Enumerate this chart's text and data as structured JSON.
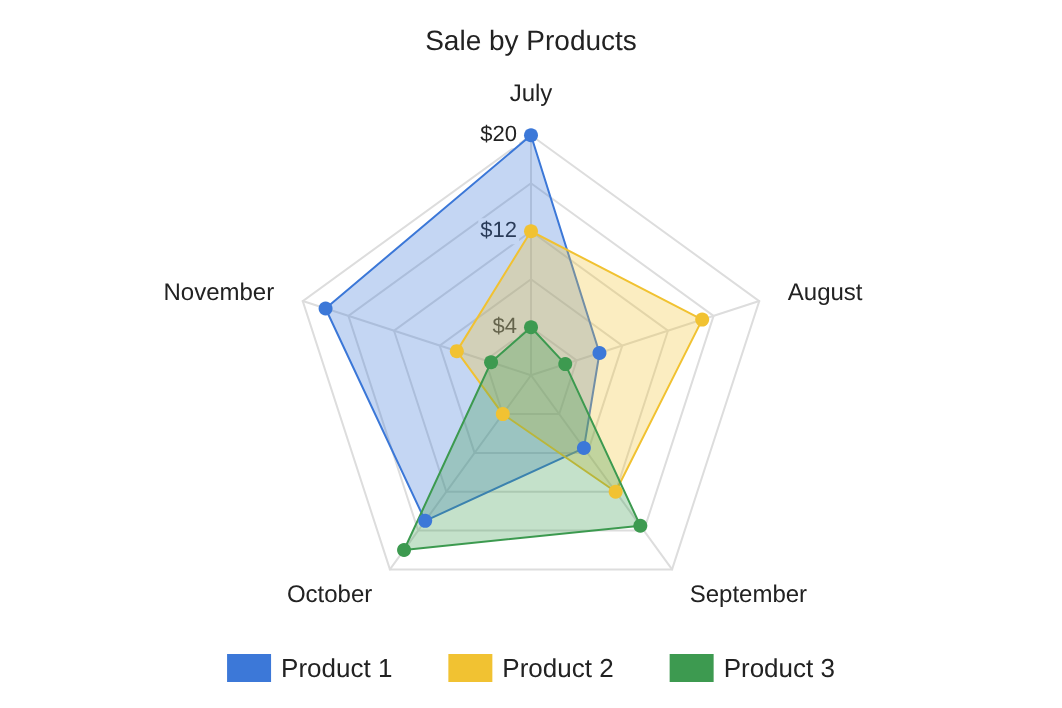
{
  "chart_data": {
    "type": "radar",
    "title": "Sale by Products",
    "categories": [
      "July",
      "August",
      "September",
      "October",
      "November"
    ],
    "ylim": [
      0,
      20
    ],
    "yticks": [
      {
        "value": 4,
        "label": "$4"
      },
      {
        "value": 12,
        "label": "$12"
      },
      {
        "value": 20,
        "label": "$20"
      }
    ],
    "legend": "bottom",
    "marker": "circle",
    "series": [
      {
        "name": "Product 1",
        "color": "#3c78d8",
        "values": [
          20,
          6,
          7.5,
          15,
          18
        ]
      },
      {
        "name": "Product 2",
        "color": "#f1c232",
        "values": [
          12,
          15,
          12,
          4,
          6.5
        ]
      },
      {
        "name": "Product 3",
        "color": "#3d9a50",
        "values": [
          4,
          3,
          15.5,
          18,
          3.5
        ]
      }
    ]
  }
}
